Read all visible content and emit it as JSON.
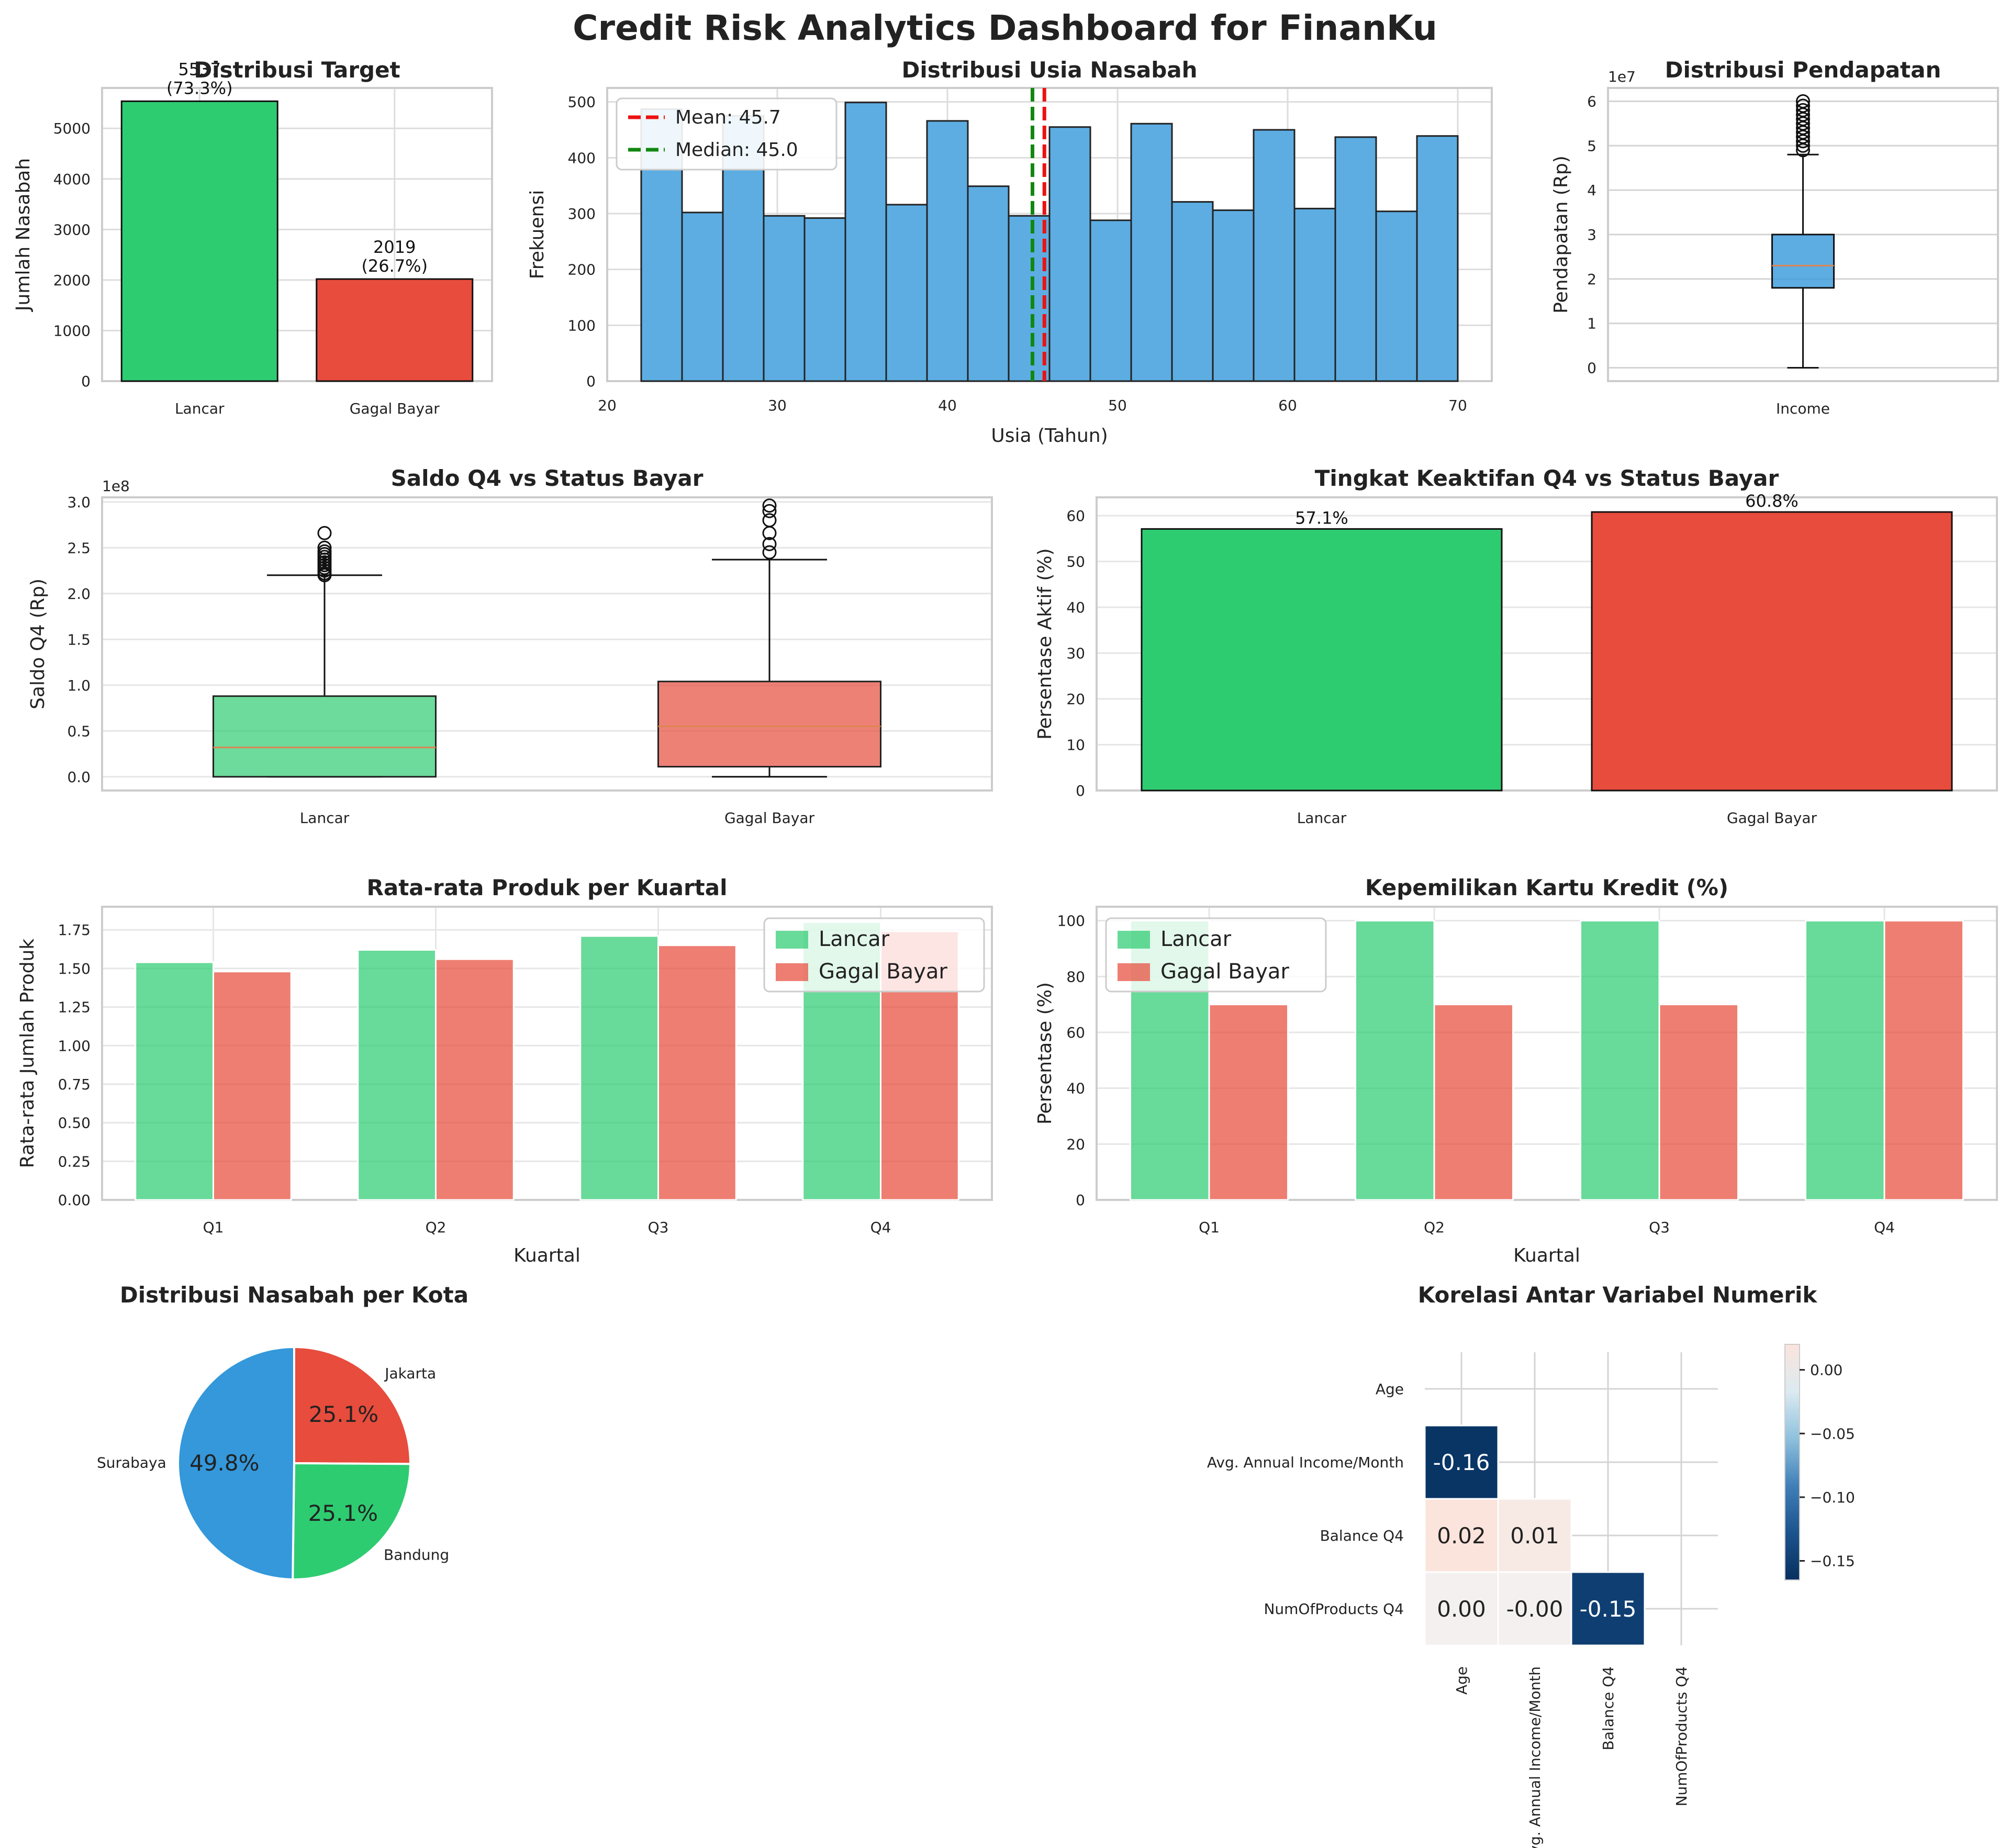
{
  "title": "Credit Risk Analytics Dashboard for FinanKu",
  "colors": {
    "green": "#2ecc71",
    "red": "#e74c3c",
    "blue": "#3498db",
    "hist": "#5dade2",
    "mean_line": "#ee1111",
    "median_line": "#118811",
    "median_box": "#dd8452",
    "grid": "#dddddd",
    "axis": "#cccccc",
    "heat_dark": "#06305f",
    "heat_light": "#fbe4dc"
  },
  "chart_data": [
    {
      "id": "target",
      "type": "bar",
      "title": "Distribusi Target",
      "xlabel": "",
      "ylabel": "Jumlah Nasabah",
      "categories": [
        "Lancar",
        "Gagal Bayar"
      ],
      "values": [
        5537,
        2019
      ],
      "value_labels": [
        "5537",
        "2019"
      ],
      "pct_labels": [
        "(73.3%)",
        "(26.7%)"
      ],
      "ylim": [
        0,
        5800
      ],
      "yticks": [
        0,
        1000,
        2000,
        3000,
        4000,
        5000
      ],
      "ytick_labels": [
        "0",
        "1000",
        "2000",
        "3000",
        "4000",
        "5000"
      ],
      "grid": true
    },
    {
      "id": "age_hist",
      "type": "histogram",
      "title": "Distribusi Usia Nasabah",
      "xlabel": "Usia (Tahun)",
      "ylabel": "Frekuensi",
      "bin_edges": [
        22,
        24.4,
        26.8,
        29.2,
        31.6,
        34,
        36.4,
        38.8,
        41.2,
        43.6,
        46,
        48.4,
        50.8,
        53.2,
        55.6,
        58,
        60.4,
        62.8,
        65.2,
        67.6,
        70
      ],
      "counts": [
        487,
        302,
        475,
        296,
        292,
        499,
        316,
        466,
        349,
        296,
        455,
        288,
        461,
        321,
        306,
        450,
        309,
        437,
        304,
        439
      ],
      "xlim": [
        20,
        72
      ],
      "ylim": [
        0,
        525
      ],
      "xticks": [
        20,
        30,
        40,
        50,
        60,
        70
      ],
      "xtick_labels": [
        "20",
        "30",
        "40",
        "50",
        "60",
        "70"
      ],
      "yticks": [
        0,
        100,
        200,
        300,
        400,
        500
      ],
      "ytick_labels": [
        "0",
        "100",
        "200",
        "300",
        "400",
        "500"
      ],
      "mean": 45.7,
      "median": 45.0,
      "legend": [
        "Mean: 45.7",
        "Median: 45.0"
      ],
      "legend_position": "upper-left",
      "grid": true
    },
    {
      "id": "income_box",
      "type": "box",
      "title": "Distribusi Pendapatan",
      "xlabel": "",
      "ylabel": "Pendapatan (Rp)",
      "scale_label": "1e7",
      "category": "Income",
      "stats": {
        "whisker_low": 0,
        "q1": 1.8,
        "median": 2.3,
        "q3": 3.0,
        "whisker_high": 4.8
      },
      "outliers": [
        4.9,
        5.0,
        5.1,
        5.2,
        5.3,
        5.4,
        5.5,
        5.6,
        5.7,
        5.8,
        5.9,
        6.0
      ],
      "ylim": [
        -0.3,
        6.3
      ],
      "yticks": [
        0,
        1,
        2,
        3,
        4,
        5,
        6
      ],
      "ytick_labels": [
        "0",
        "1",
        "2",
        "3",
        "4",
        "5",
        "6"
      ],
      "grid": true
    },
    {
      "id": "saldo_box",
      "type": "box",
      "title": "Saldo Q4 vs Status Bayar",
      "xlabel": "",
      "ylabel": "Saldo Q4 (Rp)",
      "scale_label": "1e8",
      "categories": [
        "Lancar",
        "Gagal Bayar"
      ],
      "boxes": [
        {
          "whisker_low": 0,
          "q1": 0,
          "median": 0.32,
          "q3": 0.88,
          "whisker_high": 2.2,
          "outliers": [
            2.2,
            2.22,
            2.25,
            2.28,
            2.31,
            2.34,
            2.37,
            2.4,
            2.43,
            2.46,
            2.5,
            2.66
          ]
        },
        {
          "whisker_low": 0,
          "q1": 0.11,
          "median": 0.55,
          "q3": 1.04,
          "whisker_high": 2.37,
          "outliers": [
            2.45,
            2.54,
            2.66,
            2.8,
            2.9,
            2.96
          ]
        }
      ],
      "ylim": [
        -0.15,
        3.05
      ],
      "yticks": [
        0,
        0.5,
        1.0,
        1.5,
        2.0,
        2.5,
        3.0
      ],
      "ytick_labels": [
        "0.0",
        "0.5",
        "1.0",
        "1.5",
        "2.0",
        "2.5",
        "3.0"
      ],
      "grid": true
    },
    {
      "id": "active_bar",
      "type": "bar",
      "title": "Tingkat Keaktifan Q4 vs Status Bayar",
      "xlabel": "",
      "ylabel": "Persentase Aktif (%)",
      "categories": [
        "Lancar",
        "Gagal Bayar"
      ],
      "values": [
        57.1,
        60.8
      ],
      "value_labels": [
        "57.1%",
        "60.8%"
      ],
      "ylim": [
        0,
        64
      ],
      "yticks": [
        0,
        10,
        20,
        30,
        40,
        50,
        60
      ],
      "ytick_labels": [
        "0",
        "10",
        "20",
        "30",
        "40",
        "50",
        "60"
      ],
      "grid": true
    },
    {
      "id": "products_bar",
      "type": "bar",
      "title": "Rata-rata Produk per Kuartal",
      "xlabel": "Kuartal",
      "ylabel": "Rata-rata Jumlah Produk",
      "categories": [
        "Q1",
        "Q2",
        "Q3",
        "Q4"
      ],
      "series": [
        {
          "name": "Lancar",
          "values": [
            1.54,
            1.62,
            1.71,
            1.8
          ]
        },
        {
          "name": "Gagal Bayar",
          "values": [
            1.48,
            1.56,
            1.65,
            1.74
          ]
        }
      ],
      "ylim": [
        0,
        1.9
      ],
      "yticks": [
        0,
        0.25,
        0.5,
        0.75,
        1.0,
        1.25,
        1.5,
        1.75
      ],
      "ytick_labels": [
        "0.00",
        "0.25",
        "0.50",
        "0.75",
        "1.00",
        "1.25",
        "1.50",
        "1.75"
      ],
      "legend_position": "upper-right",
      "grid": true
    },
    {
      "id": "card_bar",
      "type": "bar",
      "title": "Kepemilikan Kartu Kredit (%)",
      "xlabel": "Kuartal",
      "ylabel": "Persentase (%)",
      "categories": [
        "Q1",
        "Q2",
        "Q3",
        "Q4"
      ],
      "series": [
        {
          "name": "Lancar",
          "values": [
            100,
            100,
            100,
            100
          ]
        },
        {
          "name": "Gagal Bayar",
          "values": [
            70,
            70,
            70,
            100
          ]
        }
      ],
      "ylim": [
        0,
        105
      ],
      "yticks": [
        0,
        20,
        40,
        60,
        80,
        100
      ],
      "ytick_labels": [
        "0",
        "20",
        "40",
        "60",
        "80",
        "100"
      ],
      "legend_position": "upper-left",
      "grid": true
    },
    {
      "id": "city_pie",
      "type": "pie",
      "title": "Distribusi Nasabah per Kota",
      "labels": [
        "Jakarta",
        "Bandung",
        "Surabaya"
      ],
      "values": [
        25.1,
        25.1,
        49.8
      ],
      "pct_labels": [
        "25.1%",
        "25.1%",
        "49.8%"
      ],
      "slice_colors": [
        "#e74c3c",
        "#2ecc71",
        "#3498db"
      ]
    },
    {
      "id": "corr_heatmap",
      "type": "heatmap",
      "title": "Korelasi Antar Variabel Numerik",
      "variables": [
        "Age",
        "Avg. Annual Income/Month",
        "Balance Q4",
        "NumOfProducts Q4"
      ],
      "cells": [
        {
          "row": 1,
          "col": 0,
          "value": -0.16,
          "label": "-0.16"
        },
        {
          "row": 2,
          "col": 0,
          "value": 0.02,
          "label": "0.02"
        },
        {
          "row": 2,
          "col": 1,
          "value": 0.01,
          "label": "0.01"
        },
        {
          "row": 3,
          "col": 0,
          "value": 0.0,
          "label": "0.00"
        },
        {
          "row": 3,
          "col": 1,
          "value": -0.0,
          "label": "-0.00"
        },
        {
          "row": 3,
          "col": 2,
          "value": -0.15,
          "label": "-0.15"
        }
      ],
      "colorbar_range": [
        -0.165,
        0.02
      ],
      "colorbar_ticks": [
        0.0,
        -0.05,
        -0.1,
        -0.15
      ],
      "colorbar_tick_labels": [
        "0.00",
        "−0.05",
        "−0.10",
        "−0.15"
      ],
      "mask": "upper-triangle"
    }
  ]
}
